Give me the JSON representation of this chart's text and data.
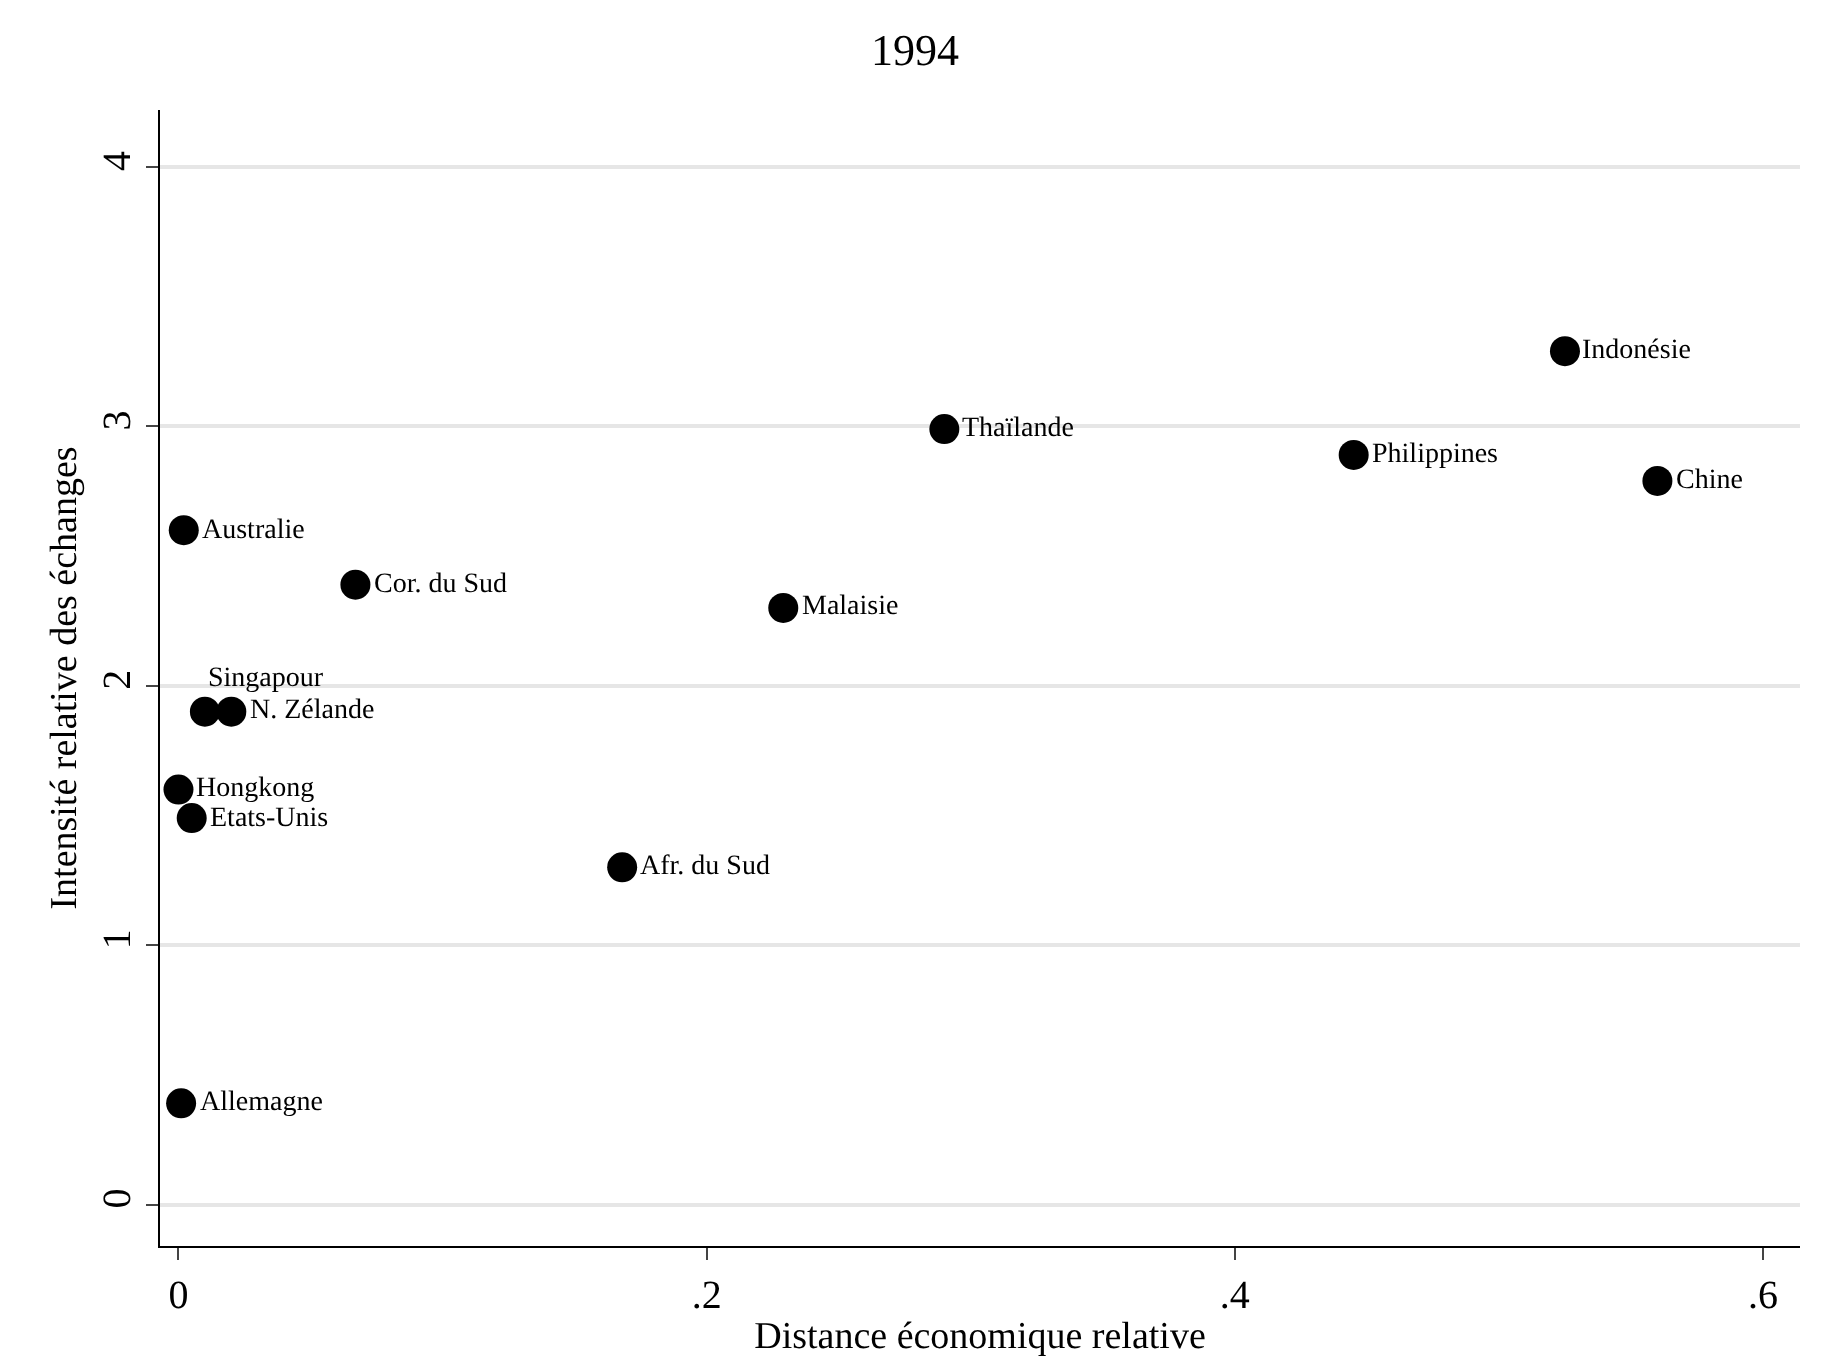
{
  "chart_data": {
    "type": "scatter",
    "title": "1994",
    "xlabel": "Distance économique relative",
    "ylabel": "Intensité relative des échanges",
    "x": [
      0.525,
      0.56,
      0.445,
      0.29,
      0.229,
      0.168,
      0.067,
      0.002,
      0.01,
      0.02,
      0.0,
      0.005,
      0.001
    ],
    "series": [
      {
        "color": "#000000",
        "values": [
          3.29,
          2.79,
          2.89,
          2.99,
          2.3,
          1.3,
          2.39,
          2.6,
          1.9,
          1.9,
          1.6,
          1.49,
          0.39
        ]
      }
    ],
    "annotations": [
      {
        "text": "Indonésie",
        "x": 0.525,
        "y": 3.29
      },
      {
        "text": "Chine",
        "x": 0.56,
        "y": 2.79
      },
      {
        "text": "Philippines",
        "x": 0.445,
        "y": 2.89
      },
      {
        "text": "Thaïlande",
        "x": 0.29,
        "y": 2.99
      },
      {
        "text": "Malaisie",
        "x": 0.229,
        "y": 2.3
      },
      {
        "text": "Afr. du Sud",
        "x": 0.168,
        "y": 1.3
      },
      {
        "text": "Cor. du Sud",
        "x": 0.067,
        "y": 2.39
      },
      {
        "text": "Australie",
        "x": 0.002,
        "y": 2.6
      },
      {
        "text": "Singapour",
        "x": 0.01,
        "y": 1.9
      },
      {
        "text": "N. Zélande",
        "x": 0.02,
        "y": 1.9
      },
      {
        "text": "Hongkong",
        "x": 0.0,
        "y": 1.6
      },
      {
        "text": "Etats-Unis",
        "x": 0.005,
        "y": 1.49
      },
      {
        "text": "Allemagne",
        "x": 0.001,
        "y": 0.39
      }
    ],
    "xlim": [
      -0.007,
      0.614
    ],
    "xticks": [
      {
        "value": 0,
        "label": "0"
      },
      {
        "value": 0.2,
        "label": ".2"
      },
      {
        "value": 0.4,
        "label": ".4"
      },
      {
        "value": 0.6,
        "label": ".6"
      }
    ],
    "ylim": [
      -0.16,
      4.22
    ],
    "yticks": [
      0,
      1,
      2,
      3,
      4
    ],
    "grid": "y",
    "marker": "circle"
  }
}
